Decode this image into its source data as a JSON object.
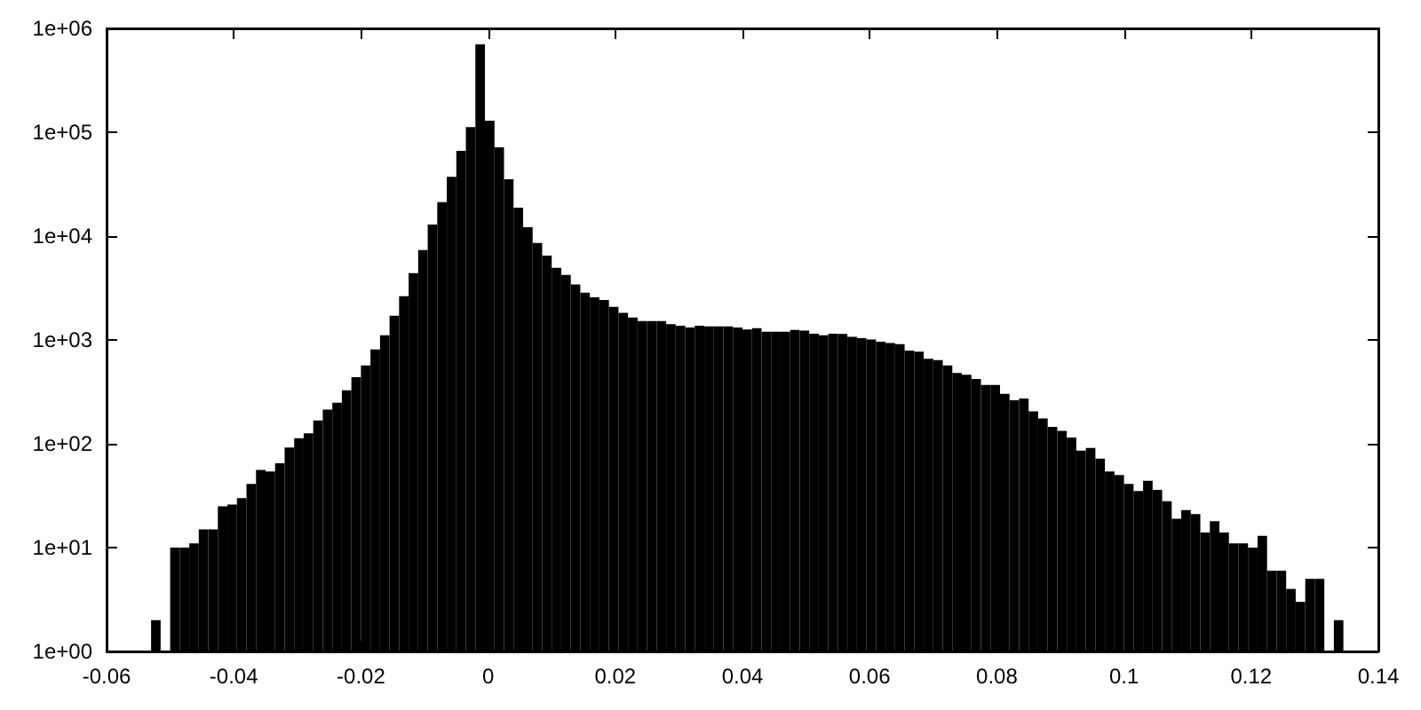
{
  "chart_data": {
    "type": "histogram",
    "color": "#000000",
    "bins": [
      -0.053,
      -0.0515,
      -0.05,
      -0.0485,
      -0.047,
      -0.0455,
      -0.044,
      -0.0425,
      -0.041,
      -0.0395,
      -0.038,
      -0.0365,
      -0.035,
      -0.0335,
      -0.032,
      -0.0305,
      -0.029,
      -0.0275,
      -0.026,
      -0.0245,
      -0.023,
      -0.0215,
      -0.02,
      -0.0185,
      -0.017,
      -0.0155,
      -0.014,
      -0.0125,
      -0.011,
      -0.0095,
      -0.008,
      -0.0065,
      -0.005,
      -0.0035,
      -0.002,
      -0.0005,
      0.001,
      0.0025,
      0.004,
      0.0055,
      0.007,
      0.0085,
      0.01,
      0.0115,
      0.013,
      0.0145,
      0.016,
      0.0175,
      0.019,
      0.0205,
      0.022,
      0.0235,
      0.025,
      0.0265,
      0.028,
      0.0295,
      0.031,
      0.0325,
      0.034,
      0.0355,
      0.037,
      0.0385,
      0.04,
      0.0415,
      0.043,
      0.0445,
      0.046,
      0.0475,
      0.049,
      0.0505,
      0.052,
      0.0535,
      0.055,
      0.0565,
      0.058,
      0.0595,
      0.061,
      0.0625,
      0.064,
      0.0655,
      0.067,
      0.0685,
      0.07,
      0.0715,
      0.073,
      0.0745,
      0.076,
      0.0775,
      0.079,
      0.0805,
      0.082,
      0.0835,
      0.085,
      0.0865,
      0.088,
      0.0895,
      0.091,
      0.0925,
      0.094,
      0.0955,
      0.097,
      0.0985,
      0.1,
      0.1015,
      0.103,
      0.1045,
      0.106,
      0.1075,
      0.109,
      0.1105,
      0.112,
      0.1135,
      0.115,
      0.1165,
      0.118,
      0.1195,
      0.121,
      0.1225,
      0.124,
      0.1255,
      0.127,
      0.1285,
      0.13,
      0.1315,
      0.133,
      0.1345
    ],
    "values": [
      2,
      null,
      10,
      10,
      11,
      15,
      15,
      25,
      26,
      30,
      41,
      56,
      54,
      65,
      92,
      113,
      126,
      168,
      213,
      249,
      328,
      437,
      569,
      810,
      1109,
      1710,
      2630,
      4390,
      7330,
      12900,
      21200,
      37200,
      66200,
      112000,
      700000,
      129000,
      71600,
      35300,
      18800,
      12200,
      8570,
      6500,
      4940,
      4220,
      3420,
      2850,
      2570,
      2430,
      2080,
      1820,
      1640,
      1520,
      1520,
      1520,
      1420,
      1370,
      1320,
      1370,
      1350,
      1350,
      1350,
      1320,
      1260,
      1300,
      1200,
      1200,
      1200,
      1250,
      1230,
      1150,
      1110,
      1150,
      1140,
      1070,
      1040,
      1010,
      960,
      935,
      912,
      789,
      769,
      657,
      640,
      569,
      480,
      461,
      421,
      369,
      369,
      303,
      262,
      273,
      205,
      175,
      145,
      133,
      115,
      86,
      91,
      72,
      54,
      50,
      41,
      35,
      44,
      36,
      28,
      19,
      23,
      21,
      14,
      18,
      14,
      11,
      11,
      10,
      13,
      6,
      6,
      4,
      3,
      5,
      5,
      null,
      2
    ],
    "log": "y",
    "xlim": [
      -0.06,
      0.14
    ],
    "xticks": [
      -0.06,
      -0.04,
      -0.02,
      0,
      0.02,
      0.04,
      0.06,
      0.08,
      {
        "value": 0.1,
        "label": "0.1"
      },
      0.12,
      0.14
    ],
    "ylim": [
      1,
      1000000
    ],
    "yticks": [
      {
        "value": 1,
        "label": "1e+00"
      },
      {
        "value": 10,
        "label": "1e+01"
      },
      {
        "value": 100,
        "label": "1e+02"
      },
      {
        "value": 1000,
        "label": "1e+03"
      },
      {
        "value": 10000,
        "label": "1e+04"
      },
      {
        "value": 100000,
        "label": "1e+05"
      },
      {
        "value": 1000000,
        "label": "1e+06"
      }
    ],
    "grid": false
  }
}
